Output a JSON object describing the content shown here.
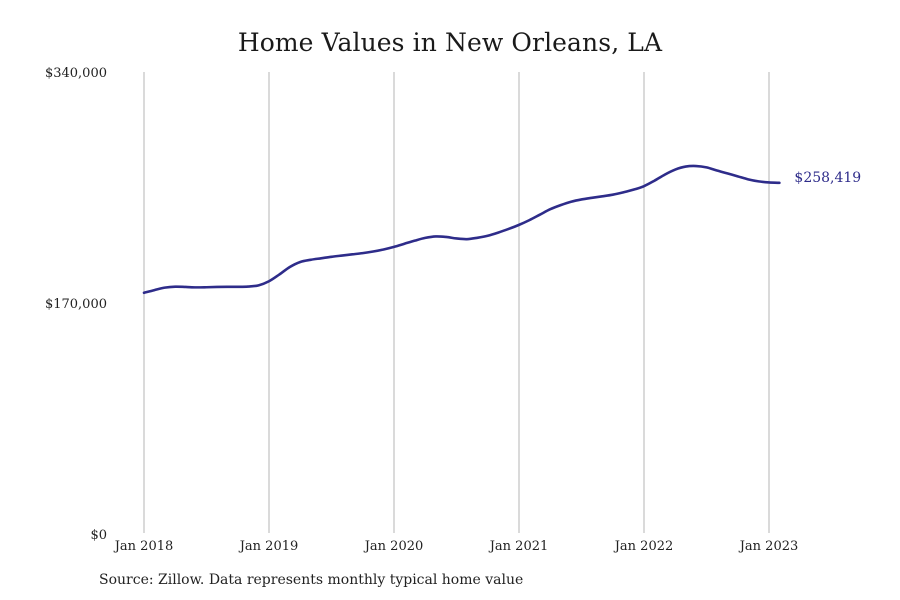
{
  "colors": {
    "line": "#2e2c8a",
    "grid": "#b5b5b5",
    "text": "#222222"
  },
  "source": "Source: Zillow. Data represents monthly typical home value",
  "chart_data": {
    "type": "line",
    "title": "Home Values in New Orleans, LA",
    "xlabel": "",
    "ylabel": "",
    "ylim": [
      0,
      340000
    ],
    "yticks": [
      {
        "value": 0,
        "label": "$0"
      },
      {
        "value": 170000,
        "label": "$170,000"
      },
      {
        "value": 340000,
        "label": "$340,000"
      }
    ],
    "xticks": [
      {
        "value": "2018-01",
        "label": "Jan 2018"
      },
      {
        "value": "2019-01",
        "label": "Jan 2019"
      },
      {
        "value": "2020-01",
        "label": "Jan 2020"
      },
      {
        "value": "2021-01",
        "label": "Jan 2021"
      },
      {
        "value": "2022-01",
        "label": "Jan 2022"
      },
      {
        "value": "2023-01",
        "label": "Jan 2023"
      }
    ],
    "grid": "vertical",
    "end_label": "$258,419",
    "series": [
      {
        "x": [
          "2018-01",
          "2018-02",
          "2018-03",
          "2018-04",
          "2018-05",
          "2018-06",
          "2018-07",
          "2018-08",
          "2018-09",
          "2018-10",
          "2018-11",
          "2018-12",
          "2019-01",
          "2019-02",
          "2019-03",
          "2019-04",
          "2019-05",
          "2019-06",
          "2019-07",
          "2019-08",
          "2019-09",
          "2019-10",
          "2019-11",
          "2019-12",
          "2020-01",
          "2020-02",
          "2020-03",
          "2020-04",
          "2020-05",
          "2020-06",
          "2020-07",
          "2020-08",
          "2020-09",
          "2020-10",
          "2020-11",
          "2020-12",
          "2021-01",
          "2021-02",
          "2021-03",
          "2021-04",
          "2021-05",
          "2021-06",
          "2021-07",
          "2021-08",
          "2021-09",
          "2021-10",
          "2021-11",
          "2021-12",
          "2022-01",
          "2022-02",
          "2022-03",
          "2022-04",
          "2022-05",
          "2022-06",
          "2022-07",
          "2022-08",
          "2022-09",
          "2022-10",
          "2022-11",
          "2022-12",
          "2023-01",
          "2023-02"
        ],
        "values": [
          177500,
          179500,
          181300,
          182000,
          181800,
          181500,
          181600,
          181800,
          181900,
          181900,
          182100,
          183000,
          186000,
          191000,
          196500,
          200200,
          201800,
          202900,
          204000,
          204900,
          205800,
          206700,
          207900,
          209400,
          211300,
          213600,
          215900,
          217900,
          219000,
          218600,
          217500,
          217000,
          218000,
          219500,
          221800,
          224500,
          227500,
          231000,
          235000,
          239000,
          242000,
          244500,
          246200,
          247400,
          248500,
          249700,
          251400,
          253400,
          256000,
          260000,
          264500,
          268200,
          270400,
          270800,
          269800,
          267500,
          265400,
          263200,
          261000,
          259500,
          258700,
          258419
        ]
      }
    ]
  }
}
